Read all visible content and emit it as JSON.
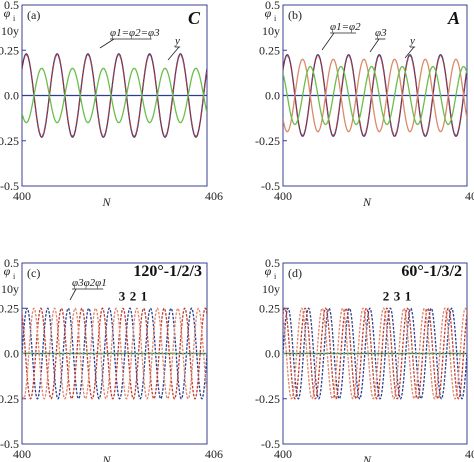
{
  "chart_data": [
    {
      "type": "line",
      "panel_label": "(a)",
      "tag": "C",
      "tag_italic": true,
      "ylabel_lines": [
        "φ",
        "i",
        "10y"
      ],
      "xlabel": "N",
      "xlim": [
        400,
        406
      ],
      "ylim": [
        -0.5,
        0.5
      ],
      "xticks": [
        "400",
        "406"
      ],
      "yticks": [
        "0.5",
        "0.25",
        "0.0",
        "-0.25",
        "-0.5"
      ],
      "annotations": [
        {
          "text": "φ1=φ2=φ3",
          "points_to": "phi"
        },
        {
          "text": "y",
          "points_to": "y"
        }
      ],
      "series": [
        {
          "key": "phi",
          "color": "#2c3f8f",
          "amplitude": 0.23,
          "cycles_per_unit": 1,
          "phase_deg": 40
        },
        {
          "key": "phi_overlay",
          "color": "#c0392b",
          "amplitude": 0.225,
          "cycles_per_unit": 1,
          "phase_deg": 40
        },
        {
          "key": "y",
          "color": "#6abf4b",
          "amplitude": 0.15,
          "cycles_per_unit": 1,
          "phase_deg": 220
        }
      ]
    },
    {
      "type": "line",
      "panel_label": "(b)",
      "tag": "A",
      "tag_italic": true,
      "ylabel_lines": [
        "φ",
        "i",
        "10y"
      ],
      "xlabel": "N",
      "xlim": [
        400,
        406
      ],
      "ylim": [
        -0.5,
        0.5
      ],
      "xticks": [
        "400",
        "406"
      ],
      "yticks": [
        "0.5",
        "0.25",
        "0.0",
        "-0.25",
        "-0.5"
      ],
      "annotations": [
        {
          "text": "φ1=φ2",
          "points_to": "phi12"
        },
        {
          "text": "φ3",
          "points_to": "phi3"
        },
        {
          "text": "y",
          "points_to": "y"
        }
      ],
      "series": [
        {
          "key": "phi12",
          "color": "#2c3f8f",
          "amplitude": 0.225,
          "cycles_per_unit": 1,
          "phase_deg": 40
        },
        {
          "key": "phi12_overlay",
          "color": "#c0392b",
          "amplitude": 0.22,
          "cycles_per_unit": 1,
          "phase_deg": 40
        },
        {
          "key": "phi3",
          "color": "#d98b6a",
          "amplitude": 0.2,
          "cycles_per_unit": 1,
          "phase_deg": 220
        },
        {
          "key": "y",
          "color": "#6abf4b",
          "amplitude": 0.16,
          "cycles_per_unit": 1,
          "phase_deg": 130
        }
      ]
    },
    {
      "type": "line",
      "panel_label": "(c)",
      "tag": "120°-1/2/3",
      "tag_italic": false,
      "ylabel_lines": [
        "φ",
        "i",
        "10y"
      ],
      "xlabel": "N",
      "xlim": [
        400,
        406
      ],
      "ylim": [
        -0.5,
        0.5
      ],
      "xticks": [
        "400",
        "406"
      ],
      "yticks": [
        "0.5",
        "0.25",
        "0.0",
        "-0.25",
        "-0.5"
      ],
      "annotations": [
        {
          "text": "φ3φ2φ1",
          "points_to": "phi"
        }
      ],
      "peak_labels": [
        "3",
        "2",
        "1"
      ],
      "series": [
        {
          "key": "phi1",
          "color": "#2c3f8f",
          "amplitude": 0.25,
          "cycles_per_unit": 1.5,
          "phase_deg": 0
        },
        {
          "key": "phi2",
          "color": "#c0392b",
          "amplitude": 0.25,
          "cycles_per_unit": 1.5,
          "phase_deg": 120
        },
        {
          "key": "phi3",
          "color": "#e0866e",
          "amplitude": 0.25,
          "cycles_per_unit": 1.5,
          "phase_deg": 240
        },
        {
          "key": "y",
          "color": "#6abf4b",
          "amplitude": 0.002,
          "cycles_per_unit": 1.5,
          "phase_deg": 0
        }
      ]
    },
    {
      "type": "line",
      "panel_label": "(d)",
      "tag": "60°-1/3/2",
      "tag_italic": false,
      "ylabel_lines": [
        "φ",
        "i",
        "10y"
      ],
      "xlabel": "N",
      "xlim": [
        400,
        406
      ],
      "ylim": [
        -0.5,
        0.5
      ],
      "xticks": [
        "400",
        "406"
      ],
      "yticks": [
        "0.5",
        "0.25",
        "0.0",
        "-0.25",
        "-0.5"
      ],
      "annotations": [],
      "peak_labels": [
        "2",
        "3",
        "1"
      ],
      "series": [
        {
          "key": "phi1",
          "color": "#2c3f8f",
          "amplitude": 0.25,
          "cycles_per_unit": 1.5,
          "phase_deg": 0
        },
        {
          "key": "phi3",
          "color": "#c0392b",
          "amplitude": 0.25,
          "cycles_per_unit": 1.5,
          "phase_deg": 60
        },
        {
          "key": "phi2",
          "color": "#e0866e",
          "amplitude": 0.25,
          "cycles_per_unit": 1.5,
          "phase_deg": 120
        },
        {
          "key": "y",
          "color": "#6abf4b",
          "amplitude": 0.002,
          "cycles_per_unit": 1.5,
          "phase_deg": 0
        }
      ]
    }
  ]
}
